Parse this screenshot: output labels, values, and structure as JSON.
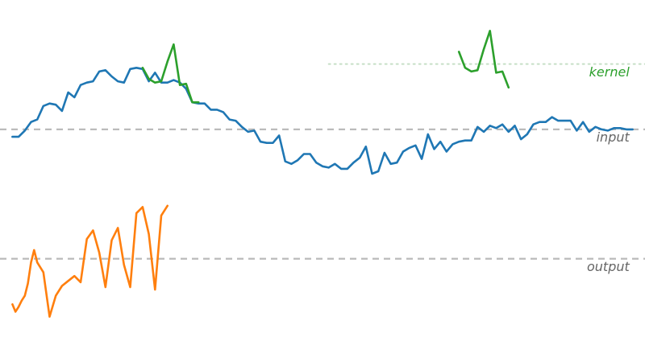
{
  "chart_data": {
    "type": "line",
    "title": "",
    "xlabel": "",
    "ylabel": "",
    "grid": false,
    "axes_visible": false,
    "xlim": [
      -2,
      102
    ],
    "ylim": [
      -1.75,
      1.05
    ],
    "baselines": [
      {
        "name": "input-baseline",
        "y": 0,
        "color": "#bbbbbb",
        "style": "dashed",
        "x_range": [
          -2,
          102
        ]
      },
      {
        "name": "output-baseline",
        "y": -1.05,
        "color": "#bbbbbb",
        "style": "dashed",
        "x_range": [
          -2,
          102
        ]
      },
      {
        "name": "kernel-baseline",
        "y": 0.53,
        "color": "#c6dfc6",
        "style": "dotted",
        "x_range": [
          51,
          102
        ]
      }
    ],
    "labels": [
      {
        "key": "kernel",
        "text": "kernel",
        "color": "#2ca02c",
        "x": 99.5,
        "y": 0.43
      },
      {
        "key": "input",
        "text": "input",
        "color": "#666666",
        "x": 99.5,
        "y": -0.1
      },
      {
        "key": "output",
        "text": "output",
        "color": "#666666",
        "x": 99.5,
        "y": -1.15
      }
    ],
    "series": [
      {
        "key": "input",
        "color": "#1f77b4",
        "x": [
          0,
          1,
          2,
          3,
          4,
          5,
          6,
          7,
          8,
          9,
          10,
          11,
          12,
          13,
          14,
          15,
          16,
          17,
          18,
          19,
          20,
          21,
          22,
          23,
          24,
          25,
          26,
          27,
          28,
          29,
          30,
          31,
          32,
          33,
          34,
          35,
          36,
          37,
          38,
          39,
          40,
          41,
          42,
          43,
          44,
          45,
          46,
          47,
          48,
          49,
          50,
          51,
          52,
          53,
          54,
          55,
          56,
          57,
          58,
          59,
          60,
          61,
          62,
          63,
          64,
          65,
          66,
          67,
          68,
          69,
          70,
          71,
          72,
          73,
          74,
          75,
          76,
          77,
          78,
          79,
          80,
          81,
          82,
          83,
          84,
          85,
          86,
          87,
          88,
          89,
          90,
          91,
          92,
          93,
          94,
          95,
          96,
          97,
          98,
          99,
          100
        ],
        "y": [
          -0.06,
          -0.06,
          -0.01,
          0.06,
          0.08,
          0.19,
          0.21,
          0.2,
          0.15,
          0.3,
          0.26,
          0.36,
          0.38,
          0.39,
          0.47,
          0.48,
          0.43,
          0.39,
          0.38,
          0.49,
          0.5,
          0.49,
          0.39,
          0.46,
          0.38,
          0.38,
          0.4,
          0.38,
          0.33,
          0.22,
          0.21,
          0.21,
          0.16,
          0.16,
          0.14,
          0.08,
          0.07,
          0.02,
          -0.02,
          -0.01,
          -0.1,
          -0.11,
          -0.11,
          -0.05,
          -0.26,
          -0.28,
          -0.25,
          -0.2,
          -0.2,
          -0.27,
          -0.3,
          -0.31,
          -0.28,
          -0.32,
          -0.32,
          -0.27,
          -0.23,
          -0.14,
          -0.36,
          -0.34,
          -0.19,
          -0.28,
          -0.27,
          -0.18,
          -0.15,
          -0.13,
          -0.24,
          -0.04,
          -0.16,
          -0.1,
          -0.18,
          -0.12,
          -0.1,
          -0.09,
          -0.09,
          0.02,
          -0.02,
          0.03,
          0.01,
          0.04,
          -0.02,
          0.03,
          -0.08,
          -0.04,
          0.04,
          0.06,
          0.06,
          0.1,
          0.07,
          0.07,
          0.07,
          -0.01,
          0.06,
          -0.02,
          0.02,
          0.0,
          -0.01,
          0.01,
          0.01,
          0.0,
          0.0
        ]
      },
      {
        "key": "kernel-left",
        "color": "#2ca02c",
        "x": [
          21,
          22,
          23,
          24,
          25,
          26,
          27,
          28,
          29,
          30
        ],
        "y": [
          0.5,
          0.41,
          0.38,
          0.39,
          0.55,
          0.69,
          0.36,
          0.37,
          0.22,
          0.22
        ]
      },
      {
        "key": "kernel-right",
        "color": "#2ca02c",
        "x": [
          72,
          73,
          74,
          75,
          76,
          77,
          78,
          79,
          80
        ],
        "y": [
          0.63,
          0.5,
          0.47,
          0.48,
          0.65,
          0.8,
          0.46,
          0.47,
          0.34
        ]
      },
      {
        "key": "output",
        "color": "#ff7f0e",
        "x": [
          0,
          0.5,
          1,
          1.5,
          2,
          2.5,
          3,
          3.5,
          4,
          5,
          6,
          7,
          8,
          9,
          10,
          11,
          12,
          13,
          14,
          15,
          16,
          17,
          18,
          19,
          20,
          21,
          22,
          23,
          24,
          25
        ],
        "y": [
          -1.42,
          -1.48,
          -1.44,
          -1.39,
          -1.35,
          -1.25,
          -1.08,
          -0.98,
          -1.08,
          -1.16,
          -1.52,
          -1.35,
          -1.27,
          -1.23,
          -1.19,
          -1.24,
          -0.89,
          -0.82,
          -1.0,
          -1.28,
          -0.9,
          -0.8,
          -1.1,
          -1.28,
          -0.68,
          -0.63,
          -0.85,
          -1.3,
          -0.7,
          -0.62
        ]
      }
    ]
  }
}
